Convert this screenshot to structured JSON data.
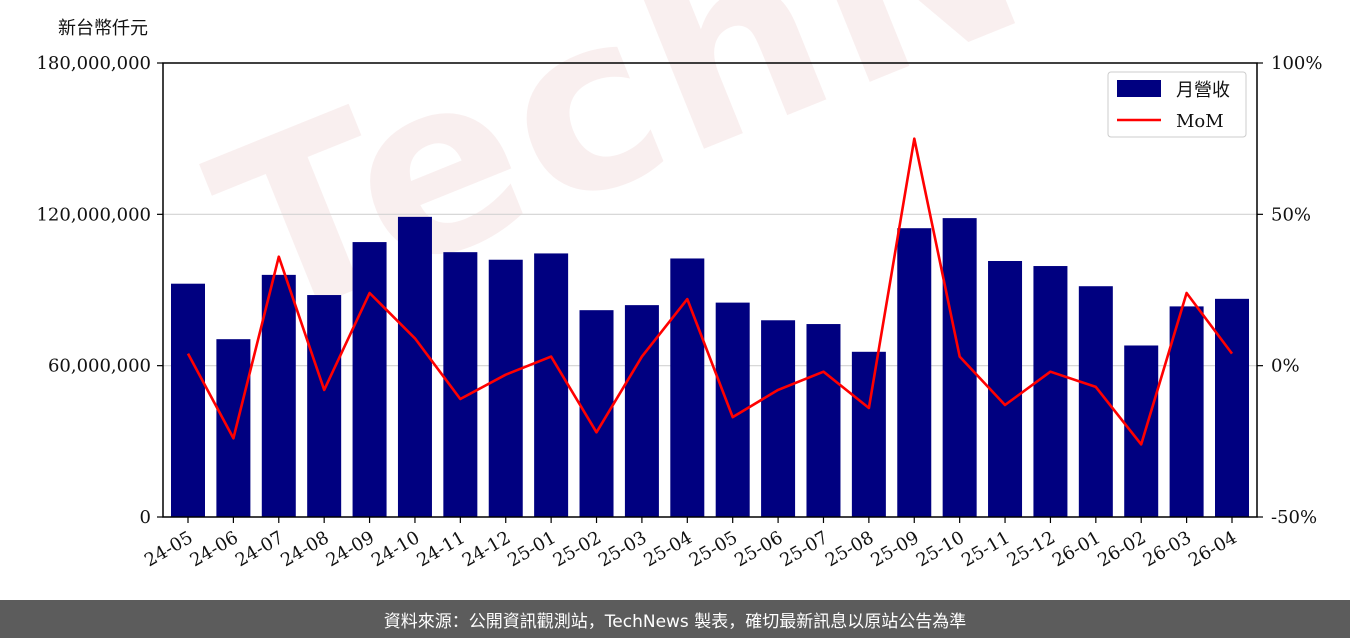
{
  "unit_label": "新台幣仟元",
  "footer": "資料來源：公開資訊觀測站，TechNews 製表，確切最新訊息以原站公告為準",
  "watermark": "TechNews",
  "colors": {
    "bar": "#000080",
    "line": "#ff0000",
    "grid": "#d3d3d3",
    "footer_bg": "#5c5c5c"
  },
  "chart_data": {
    "type": "bar",
    "categories": [
      "24-05",
      "24-06",
      "24-07",
      "24-08",
      "24-09",
      "24-10",
      "24-11",
      "24-12",
      "25-01",
      "25-02",
      "25-03",
      "25-04",
      "25-05",
      "25-06",
      "25-07",
      "25-08",
      "25-09",
      "25-10",
      "25-11",
      "25-12",
      "26-01",
      "26-02",
      "26-03",
      "26-04"
    ],
    "series": [
      {
        "name": "月營收",
        "type": "bar",
        "axis": "left",
        "values": [
          92500000,
          70500000,
          96000000,
          88000000,
          109000000,
          119000000,
          105000000,
          102000000,
          104500000,
          82000000,
          84000000,
          102500000,
          85000000,
          78000000,
          76500000,
          65500000,
          114500000,
          118500000,
          101500000,
          99500000,
          91500000,
          68000000,
          83500000,
          86500000
        ]
      },
      {
        "name": "MoM",
        "type": "line",
        "axis": "right",
        "values": [
          4,
          -24,
          36,
          -8,
          24,
          9,
          -11,
          -3,
          3,
          -22,
          3,
          22,
          -17,
          -8,
          -2,
          -14,
          75,
          3,
          -13,
          -2,
          -7,
          -26,
          24,
          4
        ]
      }
    ],
    "y_left": {
      "lim": [
        0,
        180000000
      ],
      "ticks": [
        "0",
        "60,000,000",
        "120,000,000",
        "180,000,000"
      ],
      "tick_values": [
        0,
        60000000,
        120000000,
        180000000
      ]
    },
    "y_right": {
      "lim": [
        -50,
        100
      ],
      "ticks": [
        "-50%",
        "0%",
        "50%",
        "100%"
      ],
      "tick_values": [
        -50,
        0,
        50,
        100
      ]
    },
    "grid": "horizontal",
    "legend": {
      "placement": "top-right",
      "entries": [
        "月營收",
        "MoM"
      ]
    }
  }
}
